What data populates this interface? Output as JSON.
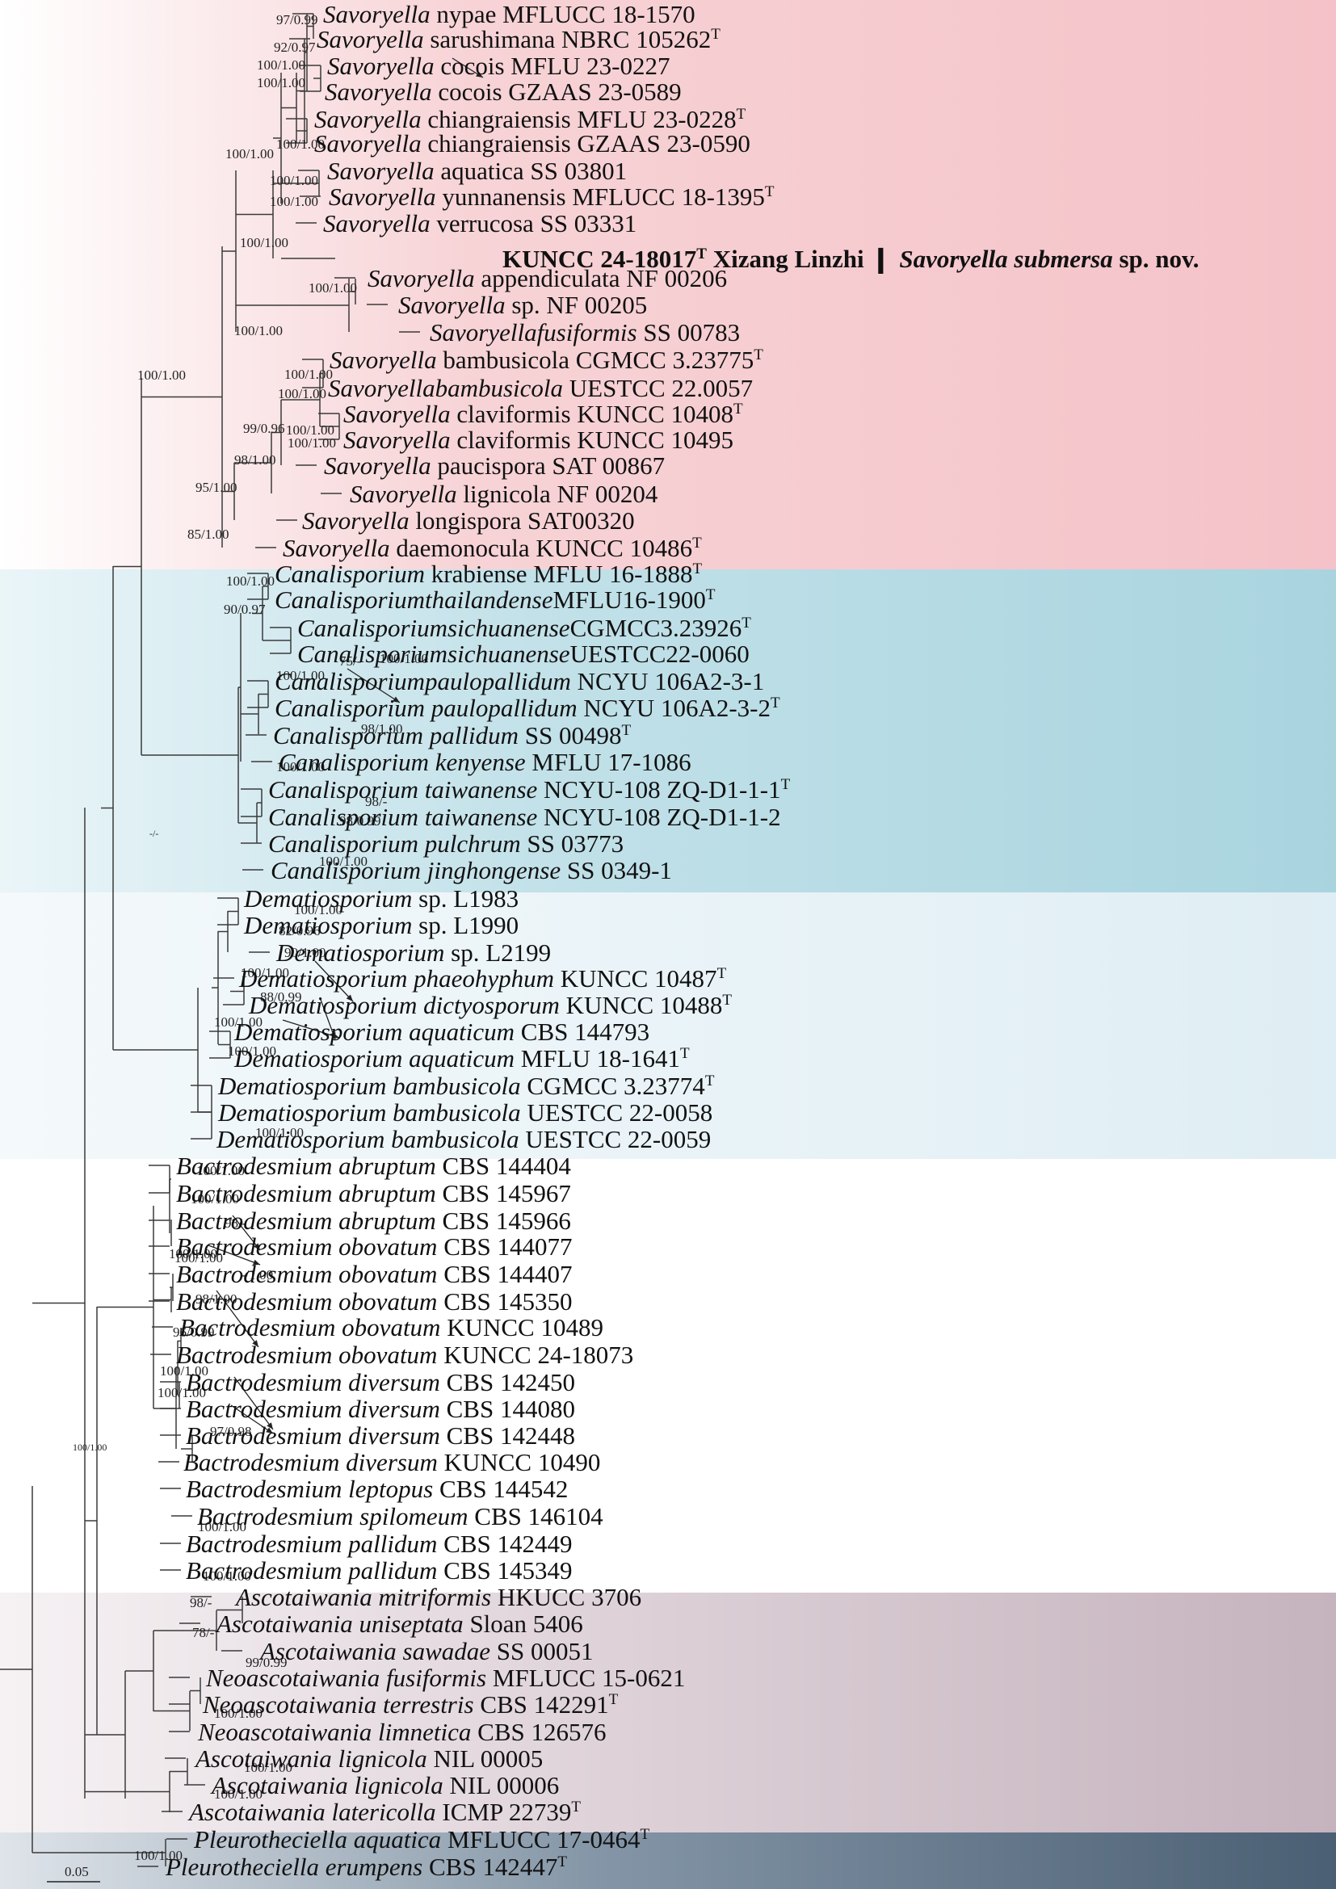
{
  "colors": {
    "savoryella_band": "#f4c2c8",
    "canalisporium_band": "#a9d4df",
    "dematiosporium_band": "#dfeef4",
    "ascotaiwania_band": "#c5b3bd",
    "pleurotheciella_band": "#4b5f74"
  },
  "tips": [
    {
      "genus": "Savoryella",
      "rest": " nypae MFLUCC 18-1570",
      "sup": ""
    },
    {
      "genus": "Savoryella",
      "rest": " sarushimana NBRC 105262",
      "sup": "T"
    },
    {
      "genus": "Savoryella",
      "rest": " cocois MFLU 23-0227",
      "sup": ""
    },
    {
      "genus": "Savoryella",
      "rest": " cocois GZAAS 23-0589",
      "sup": ""
    },
    {
      "genus": "Savoryella",
      "rest": " chiangraiensis MFLU 23-0228",
      "sup": "T"
    },
    {
      "genus": "Savoryella",
      "rest": " chiangraiensis GZAAS 23-0590",
      "sup": ""
    },
    {
      "genus": "Savoryella",
      "rest": " aquatica SS 03801",
      "sup": ""
    },
    {
      "genus": "Savoryella",
      "rest": " yunnanensis MFLUCC 18-1395",
      "sup": "T"
    },
    {
      "genus": "Savoryella",
      "rest": " verrucosa SS 03331",
      "sup": ""
    },
    {
      "genus": "",
      "rest": "",
      "sup": ""
    },
    {
      "genus": "Savoryella",
      "rest": " appendiculata NF 00206",
      "sup": ""
    },
    {
      "genus": "Savoryella",
      "rest": " sp. NF 00205",
      "sup": ""
    },
    {
      "genus": "Savoryellafusiformis",
      "rest": " SS 00783",
      "sup": ""
    },
    {
      "genus": "Savoryella",
      "rest": " bambusicola CGMCC 3.23775",
      "sup": "T"
    },
    {
      "genus": "Savoryellabambusicola",
      "rest": " UESTCC 22.0057",
      "sup": ""
    },
    {
      "genus": "Savoryella",
      "rest": " claviformis KUNCC 10408",
      "sup": "T"
    },
    {
      "genus": "Savoryella",
      "rest": " claviformis KUNCC 10495",
      "sup": ""
    },
    {
      "genus": "Savoryella",
      "rest": " paucispora SAT 00867",
      "sup": ""
    },
    {
      "genus": "Savoryella",
      "rest": " lignicola NF 00204",
      "sup": ""
    },
    {
      "genus": "Savoryella",
      "rest": " longispora SAT00320",
      "sup": ""
    },
    {
      "genus": "Savoryella",
      "rest": " daemonocula KUNCC 10486",
      "sup": "T"
    },
    {
      "genus": "Canalisporium",
      "rest": " krabiense MFLU 16-1888",
      "sup": "T"
    },
    {
      "genus": "Canalisporiumthailandense",
      "rest": "MFLU16-1900",
      "sup": "T"
    },
    {
      "genus": "Canalisporiumsichuanense",
      "rest": "CGMCC3.23926",
      "sup": "T"
    },
    {
      "genus": "Canalisporiumsichuanense",
      "rest": "UESTCC22-0060",
      "sup": ""
    },
    {
      "genus": "Canalisporiumpaulopallidum",
      "rest": " NCYU 106A2-3-1",
      "sup": ""
    },
    {
      "genus": "Canalisporium paulopallidum",
      "rest": " NCYU 106A2-3-2",
      "sup": "T"
    },
    {
      "genus": "Canalisporium pallidum",
      "rest": " SS 00498",
      "sup": "T"
    },
    {
      "genus": "Canalisporium kenyense",
      "rest": " MFLU 17-1086",
      "sup": ""
    },
    {
      "genus": "Canalisporium taiwanense",
      "rest": " NCYU-108 ZQ-D1-1-1",
      "sup": "T"
    },
    {
      "genus": "Canalisporium taiwanense",
      "rest": " NCYU-108 ZQ-D1-1-2",
      "sup": ""
    },
    {
      "genus": "Canalisporium pulchrum",
      "rest": " SS 03773",
      "sup": ""
    },
    {
      "genus": "Canalisporium jinghongense",
      "rest": " SS 0349-1",
      "sup": ""
    },
    {
      "genus": "Dematiosporium",
      "rest": " sp. L1983",
      "sup": ""
    },
    {
      "genus": "Dematiosporium",
      "rest": " sp. L1990",
      "sup": ""
    },
    {
      "genus": "Dematiosporium",
      "rest": " sp. L2199",
      "sup": ""
    },
    {
      "genus": "Dematiosporium phaeohyphum",
      "rest": " KUNCC 10487",
      "sup": "T"
    },
    {
      "genus": "Dematiosporium dictyosporum",
      "rest": " KUNCC 10488",
      "sup": "T"
    },
    {
      "genus": "Dematiosporium aquaticum",
      "rest": " CBS 144793",
      "sup": ""
    },
    {
      "genus": "Dematiosporium aquaticum",
      "rest": " MFLU 18-1641",
      "sup": "T"
    },
    {
      "genus": "Dematiosporium bambusicola",
      "rest": " CGMCC 3.23774",
      "sup": "T"
    },
    {
      "genus": "Dematiosporium bambusicola",
      "rest": " UESTCC 22-0058",
      "sup": ""
    },
    {
      "genus": "Dematiosporium bambusicola",
      "rest": " UESTCC 22-0059",
      "sup": ""
    },
    {
      "genus": "Bactrodesmium abruptum",
      "rest": " CBS 144404",
      "sup": ""
    },
    {
      "genus": "Bactrodesmium abruptum",
      "rest": " CBS 145967",
      "sup": ""
    },
    {
      "genus": "Bactrodesmium abruptum",
      "rest": " CBS 145966",
      "sup": ""
    },
    {
      "genus": "Bactrodesmium obovatum",
      "rest": " CBS 144077",
      "sup": ""
    },
    {
      "genus": "Bactrodesmium obovatum",
      "rest": " CBS 144407",
      "sup": ""
    },
    {
      "genus": "Bactrodesmium obovatum",
      "rest": " CBS 145350",
      "sup": ""
    },
    {
      "genus": "Bactrodesmium obovatum",
      "rest": " KUNCC 10489",
      "sup": ""
    },
    {
      "genus": "Bactrodesmium obovatum",
      "rest": " KUNCC 24-18073",
      "sup": ""
    },
    {
      "genus": "Bactrodesmium diversum",
      "rest": " CBS 142450",
      "sup": ""
    },
    {
      "genus": "Bactrodesmium diversum",
      "rest": " CBS 144080",
      "sup": ""
    },
    {
      "genus": "Bactrodesmium diversum",
      "rest": " CBS 142448",
      "sup": ""
    },
    {
      "genus": "Bactrodesmium diversum",
      "rest": " KUNCC 10490",
      "sup": ""
    },
    {
      "genus": "Bactrodesmium leptopus",
      "rest": " CBS 144542",
      "sup": ""
    },
    {
      "genus": "Bactrodesmium spilomeum",
      "rest": " CBS 146104",
      "sup": ""
    },
    {
      "genus": "Bactrodesmium pallidum",
      "rest": " CBS 142449",
      "sup": ""
    },
    {
      "genus": "Bactrodesmium pallidum",
      "rest": " CBS 145349",
      "sup": ""
    },
    {
      "genus": "Ascotaiwania mitriformis",
      "rest": " HKUCC 3706",
      "sup": ""
    },
    {
      "genus": "Ascotaiwania uniseptata",
      "rest": " Sloan 5406",
      "sup": ""
    },
    {
      "genus": "Ascotaiwania sawadae",
      "rest": " SS 00051",
      "sup": ""
    },
    {
      "genus": "Neoascotaiwania fusiformis",
      "rest": " MFLUCC 15-0621",
      "sup": ""
    },
    {
      "genus": "Neoascotaiwania terrestris",
      "rest": " CBS 142291",
      "sup": "T"
    },
    {
      "genus": "Neoascotaiwania limnetica",
      "rest": " CBS 126576",
      "sup": ""
    },
    {
      "genus": "Ascotaiwania lignicola",
      "rest": " NIL 00005",
      "sup": ""
    },
    {
      "genus": "Ascotaiwania lignicola",
      "rest": " NIL 00006",
      "sup": ""
    },
    {
      "genus": "Ascotaiwania latericolla",
      "rest": " ICMP 22739",
      "sup": "T"
    },
    {
      "genus": "Pleurotheciella aquatica",
      "rest": " MFLUCC 17-0464",
      "sup": "T"
    },
    {
      "genus": "Pleurotheciella erumpens",
      "rest": " CBS 142447",
      "sup": "T"
    }
  ],
  "new_species": {
    "strain": "KUNCC 24-18017",
    "sup": "T",
    "locality": " Xizang Linzhi ",
    "bar": "❙",
    "epithet": "Savoryella submersa",
    "suffix": " sp. nov."
  },
  "supports": [
    "97/0.99",
    "92/0.97",
    "100/1.00",
    "100/1.00",
    "100/1.00",
    "100/1.00",
    "100/1.00",
    "100/1.00",
    "100/1.00",
    "100/1.00",
    "100/1.00",
    "100/1.00",
    "100/1.00",
    "100/1.00",
    "100/1.00",
    "100/1.00",
    "99/0.96",
    "98/1.00",
    "95/1.00",
    "85/1.00",
    "100/1.00",
    "90/0.97",
    "75/-",
    "100/1.00",
    "100/1.00",
    "98/1.00",
    "100/1.00",
    "98/-",
    "98/0.99",
    "100/1.00",
    "-/-",
    "100/1.00",
    "82/0.96",
    "90/1.00",
    "100/1.00",
    "88/0.99",
    "100/1.00",
    "100/1.00",
    "100/1.00",
    "100/1.00",
    "100/1.00",
    "98/-",
    "100/1.00",
    "100/1.00",
    "-/1.00",
    "98/1.00",
    "96/0.99",
    "100/1.00",
    "100/1.00",
    "97/0.98",
    "100/1.00",
    "100/1.00",
    "98/-",
    "78/-",
    "99/0.99",
    "100/1.00",
    "100/1.00",
    "100/1.00",
    "100/1.00",
    "100/1.00"
  ],
  "scale_bar": {
    "label": "0.05"
  }
}
